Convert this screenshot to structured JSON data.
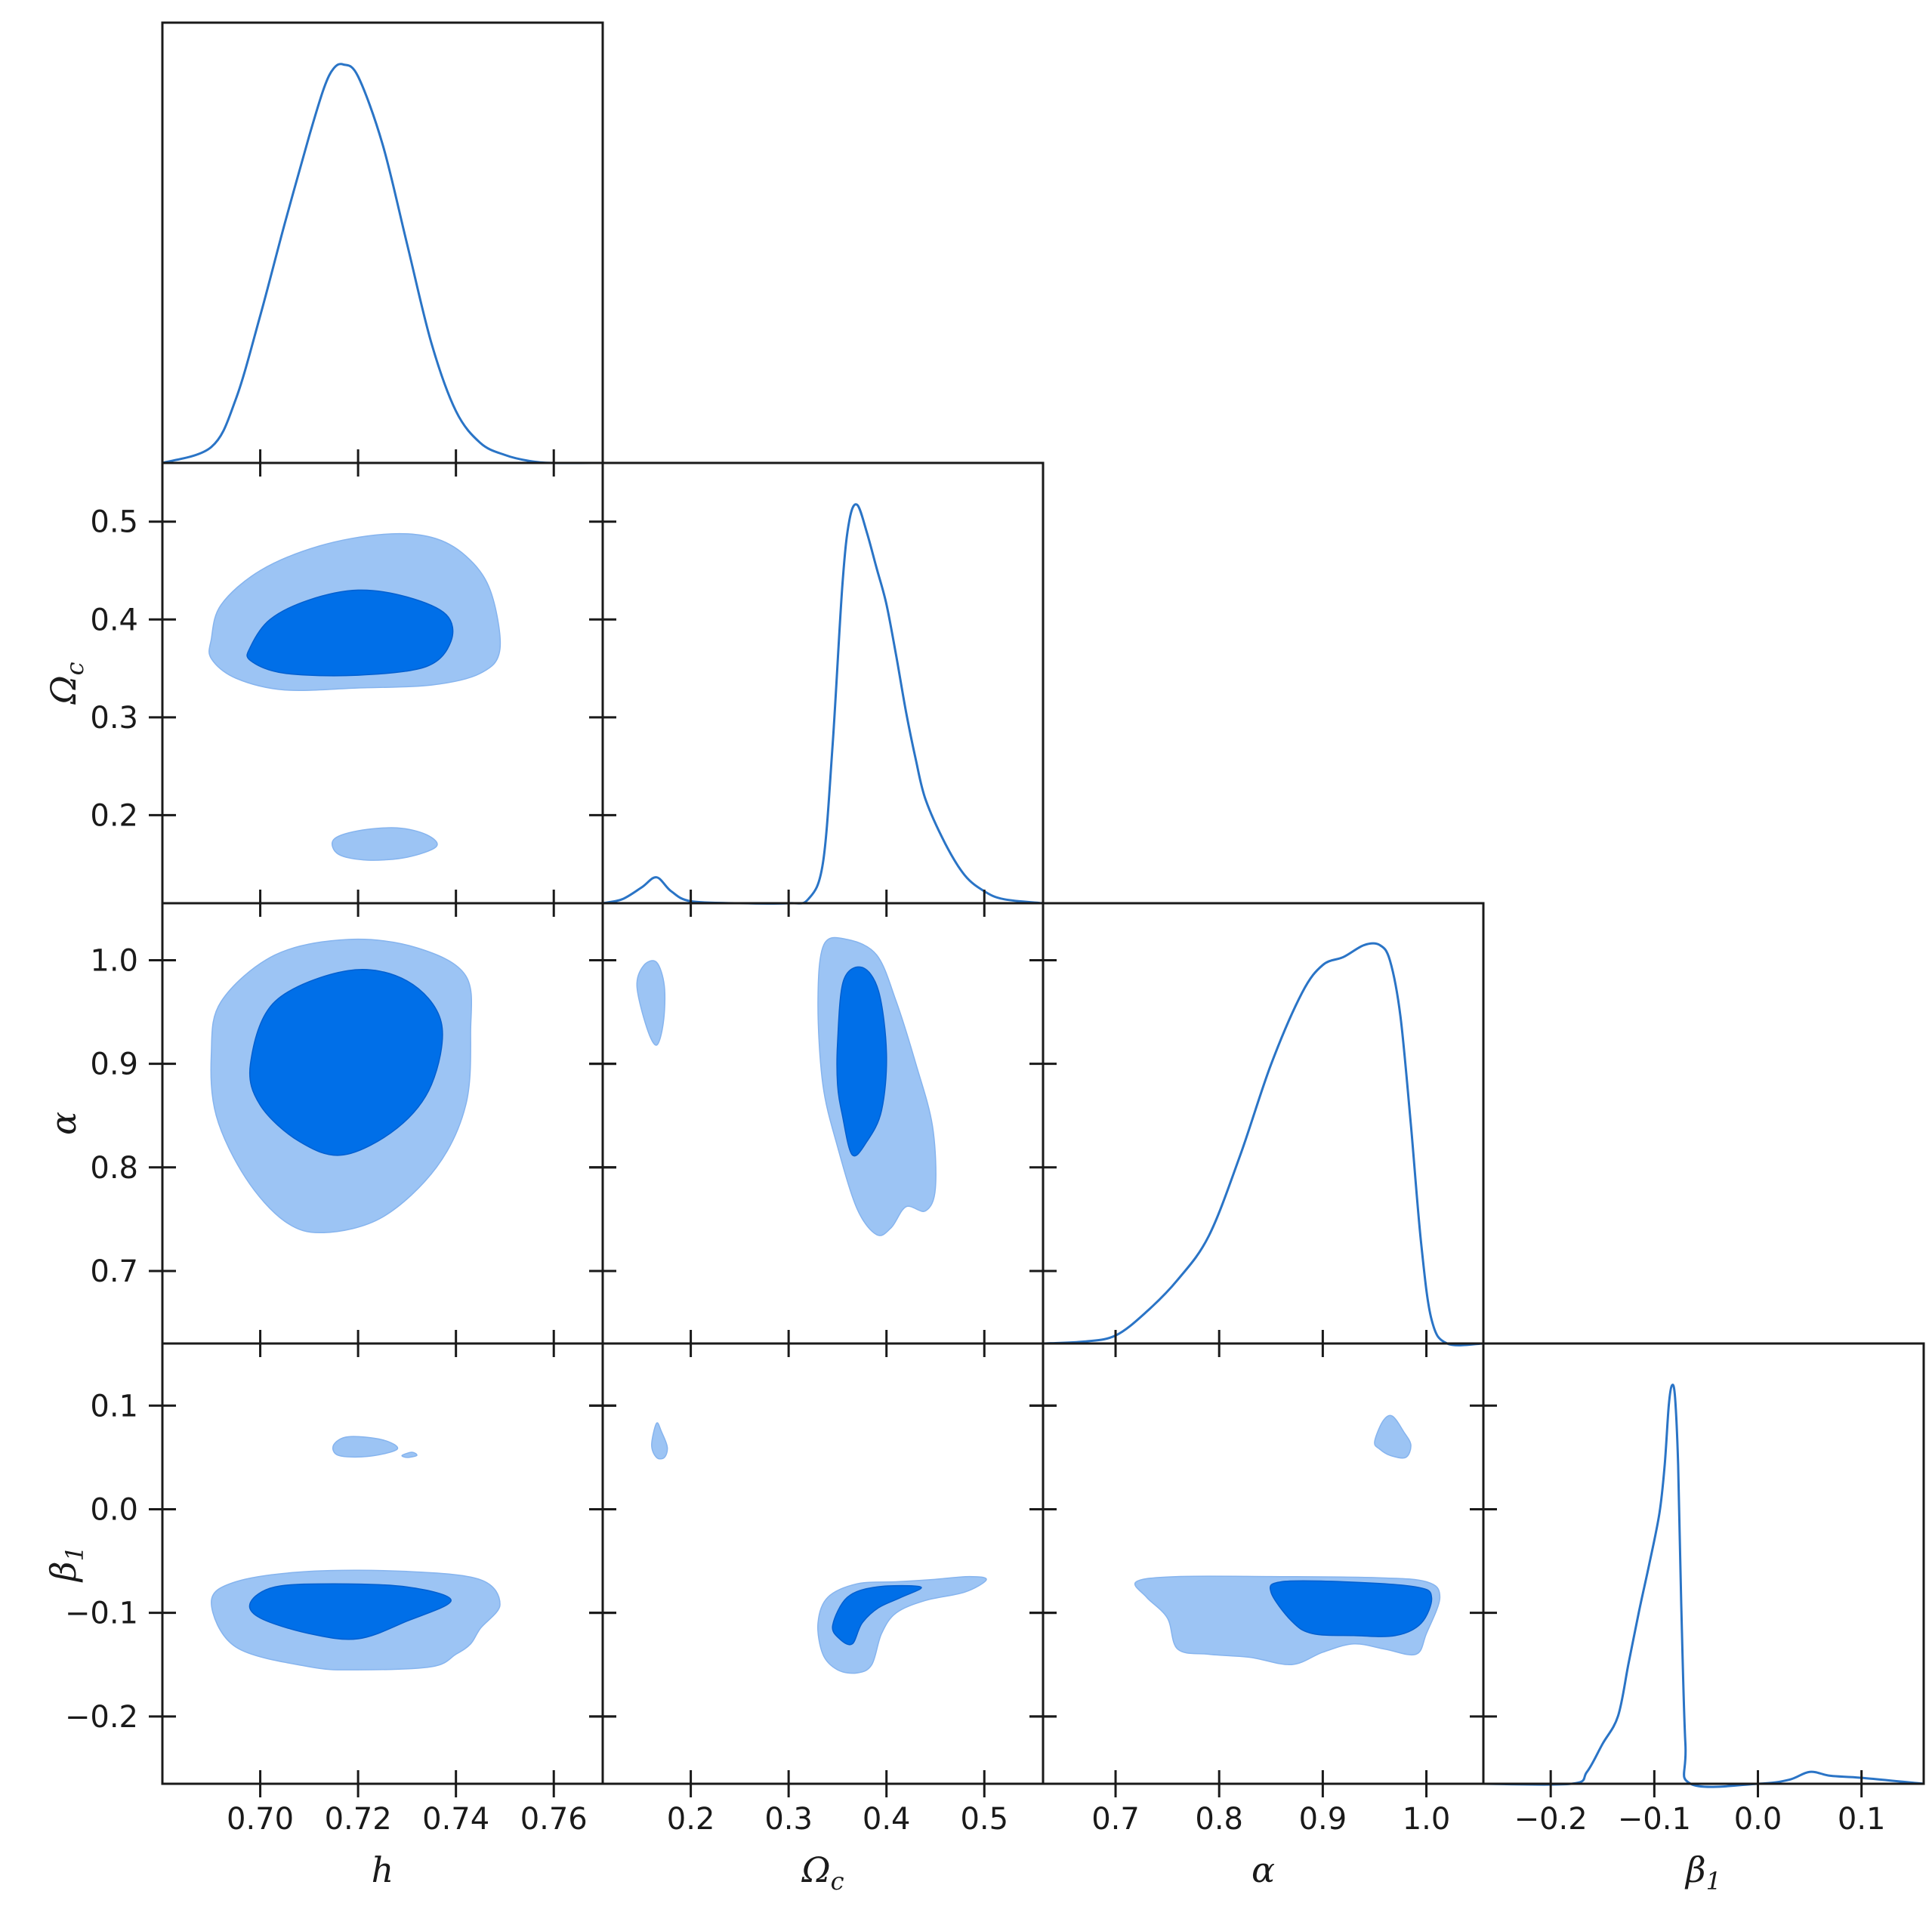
{
  "colors": {
    "outer_contour": "#9cc4f4",
    "inner_contour": "#006fe8",
    "line": "#2a74c6",
    "axis": "#1a1a1a"
  },
  "chart_data": {
    "type": "triangle",
    "parameters": [
      {
        "key": "h",
        "label": "h",
        "sub": "",
        "range": [
          0.68,
          0.77
        ],
        "ticks": [
          0.7,
          0.72,
          0.74,
          0.76
        ],
        "tick_labels": [
          "0.70",
          "0.72",
          "0.74",
          "0.76"
        ]
      },
      {
        "key": "omega_c",
        "label": "Ω",
        "sub": "c",
        "range": [
          0.11,
          0.56
        ],
        "ticks": [
          0.2,
          0.3,
          0.4,
          0.5
        ],
        "tick_labels": [
          "0.2",
          "0.3",
          "0.4",
          "0.5"
        ]
      },
      {
        "key": "alpha",
        "label": "α",
        "sub": "",
        "range": [
          0.63,
          1.055
        ],
        "ticks": [
          0.7,
          0.8,
          0.9,
          1.0
        ],
        "tick_labels": [
          "0.7",
          "0.8",
          "0.9",
          "1.0"
        ]
      },
      {
        "key": "beta1",
        "label": "β",
        "sub": "1",
        "range": [
          -0.265,
          0.16
        ],
        "ticks": [
          -0.2,
          -0.1,
          0.0,
          0.1
        ],
        "tick_labels": [
          "−0.2",
          "−0.1",
          "0.0",
          "0.1"
        ]
      }
    ],
    "marginals": [
      {
        "param": "h",
        "x": [
          0.68,
          0.69,
          0.695,
          0.7,
          0.705,
          0.71,
          0.713,
          0.715,
          0.717,
          0.72,
          0.725,
          0.73,
          0.735,
          0.74,
          0.745,
          0.75,
          0.755,
          0.76,
          0.77
        ],
        "y": [
          0.0,
          0.04,
          0.16,
          0.37,
          0.6,
          0.82,
          0.94,
          0.99,
          1.0,
          0.97,
          0.8,
          0.55,
          0.3,
          0.13,
          0.05,
          0.02,
          0.005,
          0.0,
          0.0
        ]
      },
      {
        "param": "omega_c",
        "x": [
          0.11,
          0.13,
          0.15,
          0.165,
          0.18,
          0.2,
          0.25,
          0.3,
          0.32,
          0.335,
          0.345,
          0.355,
          0.362,
          0.37,
          0.38,
          0.39,
          0.4,
          0.41,
          0.42,
          0.43,
          0.44,
          0.46,
          0.48,
          0.5,
          0.52,
          0.56
        ],
        "y": [
          0.0,
          0.01,
          0.04,
          0.065,
          0.03,
          0.005,
          0.0,
          0.0,
          0.01,
          0.1,
          0.4,
          0.8,
          0.96,
          1.0,
          0.93,
          0.84,
          0.75,
          0.62,
          0.48,
          0.36,
          0.26,
          0.15,
          0.07,
          0.03,
          0.01,
          0.0
        ]
      },
      {
        "param": "alpha",
        "x": [
          0.63,
          0.67,
          0.7,
          0.73,
          0.76,
          0.79,
          0.82,
          0.85,
          0.88,
          0.9,
          0.92,
          0.94,
          0.955,
          0.965,
          0.975,
          0.985,
          0.995,
          1.005,
          1.02,
          1.055
        ],
        "y": [
          0.0,
          0.005,
          0.02,
          0.08,
          0.16,
          0.27,
          0.47,
          0.7,
          0.88,
          0.95,
          0.97,
          1.0,
          1.0,
          0.96,
          0.82,
          0.55,
          0.25,
          0.06,
          0.0,
          0.0
        ]
      },
      {
        "param": "beta1",
        "x": [
          -0.265,
          -0.18,
          -0.165,
          -0.15,
          -0.135,
          -0.125,
          -0.115,
          -0.105,
          -0.095,
          -0.09,
          -0.086,
          -0.083,
          -0.08,
          -0.077,
          -0.074,
          -0.07,
          -0.065,
          0.0,
          0.03,
          0.05,
          0.07,
          0.1,
          0.16
        ],
        "y": [
          0.0,
          0.0,
          0.03,
          0.1,
          0.17,
          0.3,
          0.43,
          0.55,
          0.68,
          0.8,
          0.95,
          1.0,
          0.97,
          0.8,
          0.45,
          0.1,
          0.0,
          0.0,
          0.01,
          0.03,
          0.02,
          0.015,
          0.0
        ]
      }
    ],
    "contours_2d": [
      {
        "x": "h",
        "y": "omega_c",
        "outer": [
          [
            [
              0.69,
              0.38
            ],
            [
              0.692,
              0.415
            ],
            [
              0.7,
              0.45
            ],
            [
              0.712,
              0.475
            ],
            [
              0.725,
              0.487
            ],
            [
              0.735,
              0.484
            ],
            [
              0.742,
              0.465
            ],
            [
              0.747,
              0.43
            ],
            [
              0.749,
              0.37
            ],
            [
              0.745,
              0.345
            ],
            [
              0.735,
              0.333
            ],
            [
              0.72,
              0.33
            ],
            [
              0.705,
              0.328
            ],
            [
              0.695,
              0.34
            ],
            [
              0.69,
              0.36
            ]
          ],
          [
            [
              0.715,
              0.175
            ],
            [
              0.72,
              0.184
            ],
            [
              0.728,
              0.187
            ],
            [
              0.734,
              0.18
            ],
            [
              0.736,
              0.168
            ],
            [
              0.73,
              0.157
            ],
            [
              0.722,
              0.154
            ],
            [
              0.716,
              0.16
            ]
          ]
        ],
        "inner": [
          [
            [
              0.698,
              0.372
            ],
            [
              0.702,
              0.4
            ],
            [
              0.71,
              0.42
            ],
            [
              0.72,
              0.43
            ],
            [
              0.73,
              0.423
            ],
            [
              0.738,
              0.405
            ],
            [
              0.739,
              0.378
            ],
            [
              0.734,
              0.352
            ],
            [
              0.72,
              0.343
            ],
            [
              0.705,
              0.345
            ],
            [
              0.698,
              0.358
            ]
          ]
        ]
      },
      {
        "x": "h",
        "y": "alpha",
        "outer": [
          [
            [
              0.69,
              0.91
            ],
            [
              0.692,
              0.96
            ],
            [
              0.703,
              1.005
            ],
            [
              0.718,
              1.02
            ],
            [
              0.732,
              1.012
            ],
            [
              0.742,
              0.985
            ],
            [
              0.743,
              0.93
            ],
            [
              0.742,
              0.86
            ],
            [
              0.736,
              0.8
            ],
            [
              0.725,
              0.752
            ],
            [
              0.713,
              0.737
            ],
            [
              0.705,
              0.748
            ],
            [
              0.697,
              0.79
            ],
            [
              0.691,
              0.85
            ]
          ]
        ],
        "inner": [
          [
            [
              0.698,
              0.9
            ],
            [
              0.703,
              0.96
            ],
            [
              0.718,
              0.99
            ],
            [
              0.73,
              0.98
            ],
            [
              0.737,
              0.94
            ],
            [
              0.735,
              0.88
            ],
            [
              0.728,
              0.838
            ],
            [
              0.717,
              0.812
            ],
            [
              0.708,
              0.825
            ],
            [
              0.7,
              0.86
            ]
          ]
        ]
      },
      {
        "x": "omega_c",
        "y": "alpha",
        "outer": [
          [
            [
              0.145,
              0.975
            ],
            [
              0.152,
              0.995
            ],
            [
              0.165,
              0.998
            ],
            [
              0.173,
              0.975
            ],
            [
              0.172,
              0.94
            ],
            [
              0.165,
              0.918
            ],
            [
              0.155,
              0.935
            ]
          ],
          [
            [
              0.33,
              0.96
            ],
            [
              0.336,
              1.015
            ],
            [
              0.36,
              1.02
            ],
            [
              0.39,
              1.005
            ],
            [
              0.41,
              0.96
            ],
            [
              0.43,
              0.9
            ],
            [
              0.447,
              0.84
            ],
            [
              0.45,
              0.78
            ],
            [
              0.44,
              0.758
            ],
            [
              0.42,
              0.762
            ],
            [
              0.405,
              0.742
            ],
            [
              0.39,
              0.735
            ],
            [
              0.37,
              0.76
            ],
            [
              0.35,
              0.82
            ],
            [
              0.335,
              0.88
            ]
          ]
        ],
        "inner": [
          [
            [
              0.35,
              0.92
            ],
            [
              0.356,
              0.98
            ],
            [
              0.375,
              0.993
            ],
            [
              0.392,
              0.97
            ],
            [
              0.4,
              0.91
            ],
            [
              0.395,
              0.855
            ],
            [
              0.38,
              0.825
            ],
            [
              0.365,
              0.812
            ],
            [
              0.355,
              0.85
            ],
            [
              0.35,
              0.88
            ]
          ]
        ]
      },
      {
        "x": "h",
        "y": "beta1",
        "outer": [
          [
            [
              0.715,
              0.062
            ],
            [
              0.718,
              0.07
            ],
            [
              0.725,
              0.067
            ],
            [
              0.728,
              0.058
            ],
            [
              0.722,
              0.051
            ],
            [
              0.716,
              0.052
            ]
          ],
          [
            [
              0.729,
              0.052
            ],
            [
              0.731,
              0.055
            ],
            [
              0.732,
              0.052
            ],
            [
              0.73,
              0.05
            ]
          ],
          [
            [
              0.69,
              -0.09
            ],
            [
              0.695,
              -0.07
            ],
            [
              0.71,
              -0.06
            ],
            [
              0.73,
              -0.06
            ],
            [
              0.745,
              -0.068
            ],
            [
              0.749,
              -0.092
            ],
            [
              0.745,
              -0.115
            ],
            [
              0.743,
              -0.13
            ],
            [
              0.74,
              -0.14
            ],
            [
              0.735,
              -0.152
            ],
            [
              0.72,
              -0.155
            ],
            [
              0.71,
              -0.152
            ],
            [
              0.695,
              -0.133
            ]
          ]
        ],
        "inner": [
          [
            [
              0.698,
              -0.09
            ],
            [
              0.703,
              -0.075
            ],
            [
              0.715,
              -0.072
            ],
            [
              0.73,
              -0.075
            ],
            [
              0.739,
              -0.088
            ],
            [
              0.73,
              -0.108
            ],
            [
              0.72,
              -0.125
            ],
            [
              0.71,
              -0.12
            ],
            [
              0.7,
              -0.105
            ]
          ]
        ]
      },
      {
        "x": "omega_c",
        "y": "beta1",
        "outer": [
          [
            [
              0.16,
              0.062
            ],
            [
              0.165,
              0.083
            ],
            [
              0.17,
              0.075
            ],
            [
              0.176,
              0.06
            ],
            [
              0.173,
              0.05
            ],
            [
              0.165,
              0.05
            ]
          ],
          [
            [
              0.33,
              -0.11
            ],
            [
              0.34,
              -0.085
            ],
            [
              0.37,
              -0.072
            ],
            [
              0.41,
              -0.07
            ],
            [
              0.445,
              -0.068
            ],
            [
              0.485,
              -0.065
            ],
            [
              0.502,
              -0.068
            ],
            [
              0.48,
              -0.08
            ],
            [
              0.44,
              -0.088
            ],
            [
              0.41,
              -0.1
            ],
            [
              0.395,
              -0.12
            ],
            [
              0.385,
              -0.15
            ],
            [
              0.37,
              -0.158
            ],
            [
              0.35,
              -0.155
            ],
            [
              0.335,
              -0.14
            ]
          ]
        ],
        "inner": [
          [
            [
              0.345,
              -0.112
            ],
            [
              0.36,
              -0.085
            ],
            [
              0.39,
              -0.075
            ],
            [
              0.435,
              -0.075
            ],
            [
              0.415,
              -0.085
            ],
            [
              0.392,
              -0.095
            ],
            [
              0.375,
              -0.11
            ],
            [
              0.365,
              -0.13
            ],
            [
              0.352,
              -0.125
            ]
          ]
        ]
      },
      {
        "x": "alpha",
        "y": "beta1",
        "outer": [
          [
            [
              0.95,
              0.065
            ],
            [
              0.958,
              0.085
            ],
            [
              0.967,
              0.09
            ],
            [
              0.978,
              0.075
            ],
            [
              0.985,
              0.062
            ],
            [
              0.98,
              0.05
            ],
            [
              0.965,
              0.052
            ],
            [
              0.955,
              0.058
            ]
          ],
          [
            [
              0.72,
              -0.07
            ],
            [
              0.76,
              -0.065
            ],
            [
              0.85,
              -0.065
            ],
            [
              0.95,
              -0.066
            ],
            [
              1.0,
              -0.07
            ],
            [
              1.013,
              -0.085
            ],
            [
              1.0,
              -0.12
            ],
            [
              0.99,
              -0.14
            ],
            [
              0.96,
              -0.135
            ],
            [
              0.93,
              -0.13
            ],
            [
              0.9,
              -0.138
            ],
            [
              0.87,
              -0.15
            ],
            [
              0.83,
              -0.143
            ],
            [
              0.79,
              -0.14
            ],
            [
              0.76,
              -0.135
            ],
            [
              0.75,
              -0.105
            ],
            [
              0.73,
              -0.085
            ]
          ]
        ],
        "inner": [
          [
            [
              0.85,
              -0.08
            ],
            [
              0.86,
              -0.07
            ],
            [
              0.92,
              -0.07
            ],
            [
              0.99,
              -0.075
            ],
            [
              1.005,
              -0.085
            ],
            [
              0.995,
              -0.11
            ],
            [
              0.97,
              -0.122
            ],
            [
              0.93,
              -0.122
            ],
            [
              0.89,
              -0.12
            ],
            [
              0.87,
              -0.108
            ]
          ]
        ]
      }
    ]
  }
}
